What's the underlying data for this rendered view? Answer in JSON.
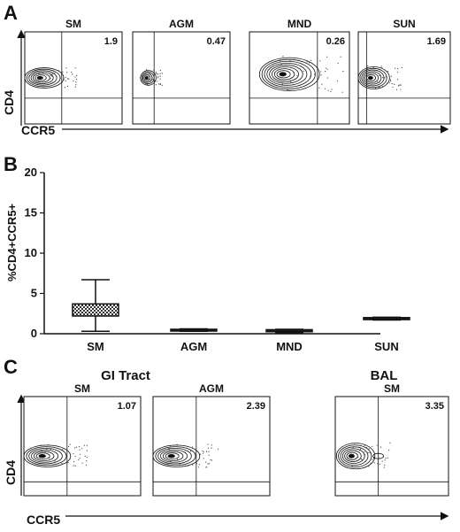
{
  "panel_letters": {
    "a": "A",
    "b": "B",
    "c": "C"
  },
  "chart_data": [
    {
      "type": "scatter",
      "panel": "A",
      "xlabel": "CCR5",
      "ylabel": "CD4",
      "plots": [
        {
          "title": "SM",
          "value": "1.9",
          "shape": "wide"
        },
        {
          "title": "AGM",
          "value": "0.47",
          "shape": "compact"
        },
        {
          "title": "MND",
          "value": "0.26",
          "shape": "large"
        },
        {
          "title": "SUN",
          "value": "1.69",
          "shape": "left"
        }
      ]
    },
    {
      "type": "bar",
      "panel": "B",
      "title": "",
      "xlabel": "",
      "ylabel": "%CD4+CCR5+",
      "ylim": [
        0,
        20
      ],
      "yticks": [
        "0",
        "5",
        "10",
        "15",
        "20"
      ],
      "categories": [
        "SM",
        "AGM",
        "MND",
        "SUN"
      ],
      "boxes": [
        {
          "name": "SM",
          "min": 0.3,
          "q1": 2.2,
          "median": 2.9,
          "q3": 3.7,
          "max": 6.7
        },
        {
          "name": "AGM",
          "min": 0.3,
          "q1": 0.35,
          "median": 0.45,
          "q3": 0.55,
          "max": 0.6
        },
        {
          "name": "MND",
          "min": 0.1,
          "q1": 0.25,
          "median": 0.35,
          "q3": 0.5,
          "max": 0.55
        },
        {
          "name": "SUN",
          "min": 1.7,
          "q1": 1.75,
          "median": 1.85,
          "q3": 2.0,
          "max": 2.05
        }
      ]
    },
    {
      "type": "scatter",
      "panel": "C",
      "xlabel": "CCR5",
      "ylabel": "CD4",
      "group_labels": [
        "GI Tract",
        "BAL"
      ],
      "plots": [
        {
          "title": "SM",
          "value": "1.07",
          "shape": "wide"
        },
        {
          "title": "AGM",
          "value": "2.39",
          "shape": "wide"
        },
        {
          "title": "SM",
          "value": "3.35",
          "shape": "tail"
        }
      ]
    }
  ]
}
